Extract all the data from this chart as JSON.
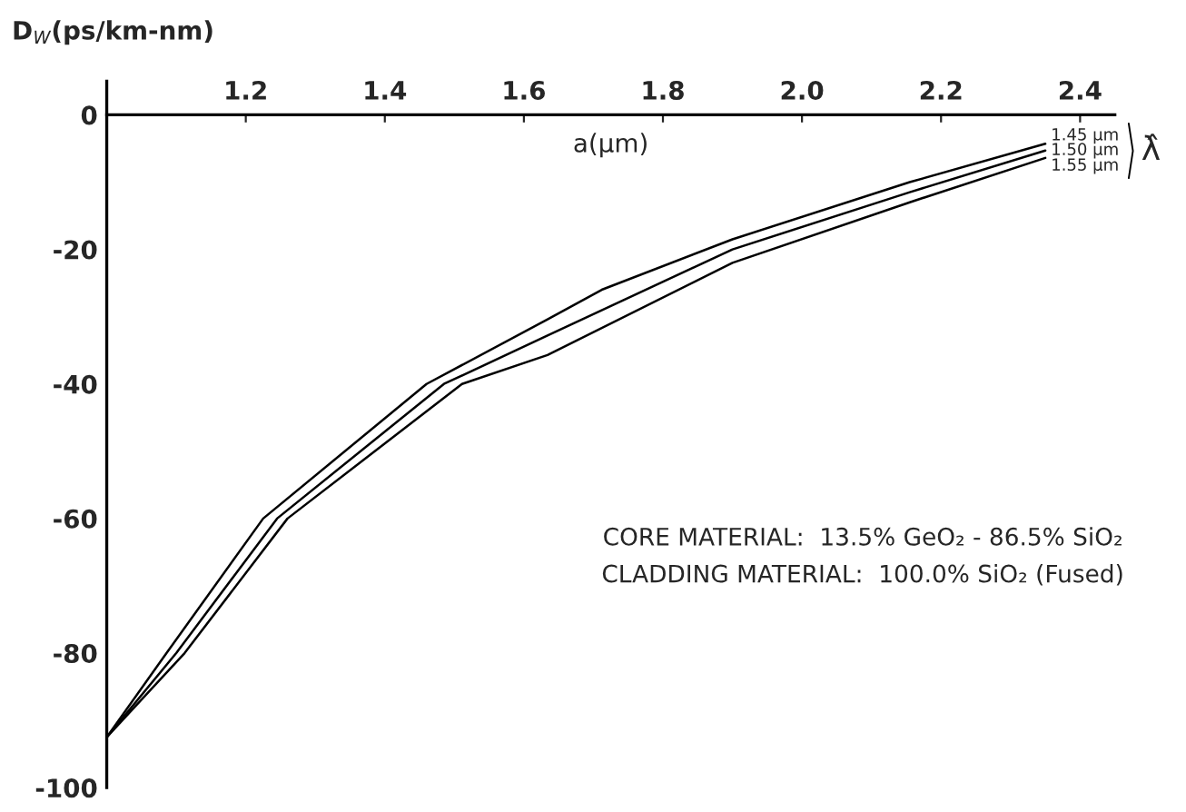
{
  "chart_data": {
    "type": "line",
    "xlabel": "a(μm)",
    "ylabel": "D$_{W}$(ps/km-nm)",
    "legend_title": "λ̂",
    "annotations": [
      "CORE MATERIAL:  13.5% GeO₂ - 86.5% SiO₂",
      "CLADDING MATERIAL:  100.0% SiO₂ (Fused)"
    ],
    "xlim": [
      1.0,
      2.45
    ],
    "ylim": [
      -100,
      5
    ],
    "xticks": [
      1.2,
      1.4,
      1.6,
      1.8,
      {
        "value": 2.0,
        "label": "2.0"
      },
      2.2,
      2.4
    ],
    "yticks": [
      0,
      -20,
      -40,
      -60,
      -80,
      -100
    ],
    "series": [
      {
        "name": "1.45 μm",
        "color": "#000000",
        "x": [
          1.0,
          1.086,
          1.225,
          1.46,
          1.634,
          1.712,
          1.9,
          2.155,
          2.35
        ],
        "values": [
          -92.5,
          -80,
          -60,
          -40,
          -30.4,
          -26,
          -18.5,
          -10,
          -4.3
        ]
      },
      {
        "name": "1.50 μm",
        "color": "#000000",
        "x": [
          1.0,
          1.1,
          1.245,
          1.485,
          1.634,
          1.9,
          2.155,
          2.35
        ],
        "values": [
          -92.5,
          -80,
          -60,
          -40,
          -32.8,
          -20,
          -11.5,
          -5.3
        ]
      },
      {
        "name": "1.55 μm",
        "color": "#000000",
        "x": [
          1.0,
          1.112,
          1.26,
          1.511,
          1.634,
          1.9,
          2.155,
          2.35
        ],
        "values": [
          -92.5,
          -80,
          -60,
          -40,
          -35.7,
          -22,
          -13,
          -6.4
        ]
      }
    ]
  }
}
